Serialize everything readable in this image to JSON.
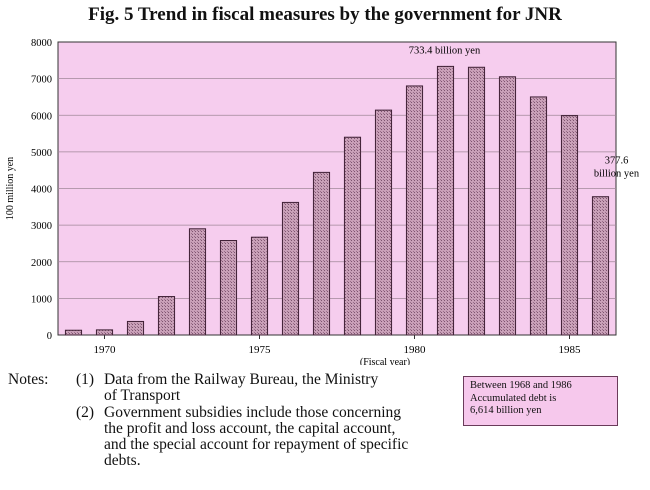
{
  "title": "Fig. 5  Trend in fiscal measures by the government for JNR",
  "chart_data": {
    "type": "bar",
    "title": "Fig. 5  Trend in fiscal measures by the government for JNR",
    "xlabel": "(Fiscal year)",
    "ylabel": "100 million yen",
    "ylim": [
      0,
      8000
    ],
    "yticks": [
      0,
      1000,
      2000,
      3000,
      4000,
      5000,
      6000,
      7000,
      8000
    ],
    "xtick_labels": [
      "1970",
      "1975",
      "1980",
      "1985"
    ],
    "grid": true,
    "categories": [
      1969,
      1970,
      1971,
      1972,
      1973,
      1974,
      1975,
      1976,
      1977,
      1978,
      1979,
      1980,
      1981,
      1982,
      1983,
      1984,
      1985,
      1986
    ],
    "values": [
      130,
      140,
      370,
      1050,
      2900,
      2580,
      2670,
      3620,
      4440,
      5400,
      6140,
      6800,
      7334,
      7310,
      7050,
      6500,
      5990,
      3776
    ],
    "annotations": [
      {
        "category": 1981,
        "lines": [
          "733.4 billion yen"
        ]
      },
      {
        "category": 1986,
        "lines": [
          "377.6",
          "billion yen"
        ]
      }
    ],
    "colors": {
      "plot_bg": "#f6cdee",
      "bar_fill": "#c79ab6",
      "bar_stroke": "#3f1f35",
      "grid": "#a08898"
    }
  },
  "notes": {
    "label": "Notes:",
    "items": [
      {
        "num": "(1)",
        "lines": [
          "Data from the Railway Bureau, the Ministry",
          "of Transport"
        ]
      },
      {
        "num": "(2)",
        "lines": [
          "Government subsidies include those concerning",
          "the profit and loss account, the capital account,",
          "and the special account for repayment of specific",
          "debts."
        ]
      }
    ]
  },
  "infobox": {
    "lines": [
      "Between 1968 and 1986",
      "Accumulated debt is",
      "6,614 billion yen"
    ]
  }
}
